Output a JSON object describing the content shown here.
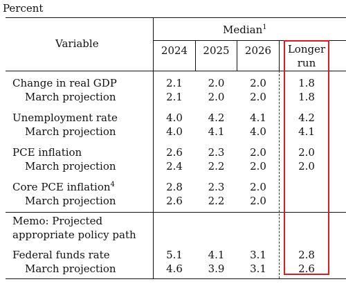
{
  "caption": "Percent",
  "header": {
    "variable": "Variable",
    "median": "Median",
    "median_note": "1",
    "years": [
      "2024",
      "2025",
      "2026"
    ],
    "longer_run": [
      "Longer",
      "run"
    ]
  },
  "rows": [
    {
      "label": "Change in real GDP",
      "note": "",
      "values": [
        "2.1",
        "2.0",
        "2.0",
        "1.8"
      ]
    },
    {
      "label": "March projection",
      "note": "",
      "values": [
        "2.1",
        "2.0",
        "2.0",
        "1.8"
      ]
    },
    {
      "label": "Unemployment rate",
      "note": "",
      "values": [
        "4.0",
        "4.2",
        "4.1",
        "4.2"
      ]
    },
    {
      "label": "March projection",
      "note": "",
      "values": [
        "4.0",
        "4.1",
        "4.0",
        "4.1"
      ]
    },
    {
      "label": "PCE inflation",
      "note": "",
      "values": [
        "2.6",
        "2.3",
        "2.0",
        "2.0"
      ]
    },
    {
      "label": "March projection",
      "note": "",
      "values": [
        "2.4",
        "2.2",
        "2.0",
        "2.0"
      ]
    },
    {
      "label": "Core PCE inflation",
      "note": "4",
      "values": [
        "2.8",
        "2.3",
        "2.0",
        ""
      ]
    },
    {
      "label": "March projection",
      "note": "",
      "values": [
        "2.6",
        "2.2",
        "2.0",
        ""
      ]
    },
    {
      "label": "Federal funds rate",
      "note": "",
      "values": [
        "5.1",
        "4.1",
        "3.1",
        "2.8"
      ]
    },
    {
      "label": "March projection",
      "note": "",
      "values": [
        "4.6",
        "3.9",
        "3.1",
        "2.6"
      ]
    }
  ],
  "memo": [
    "Memo: Projected",
    "appropriate policy path"
  ],
  "colors": {
    "highlight": "#e0191e",
    "rule": "#111111"
  }
}
